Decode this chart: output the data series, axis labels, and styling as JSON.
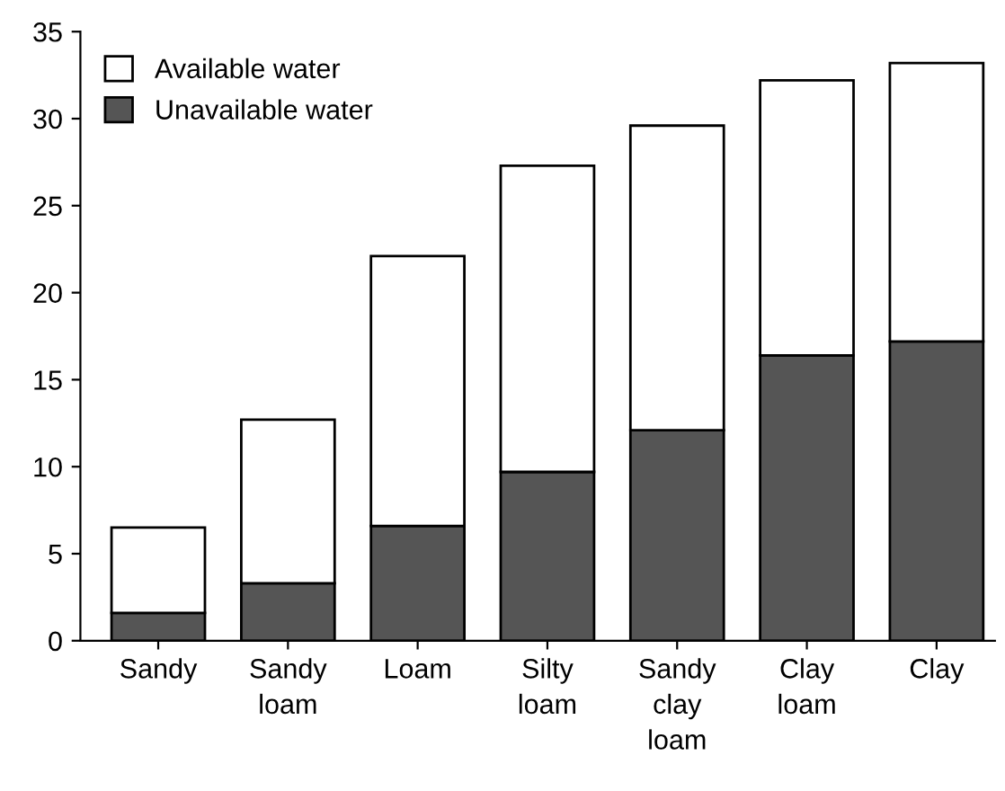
{
  "chart_data": {
    "type": "bar",
    "stacked": true,
    "categories": [
      "Sandy",
      "Sandy\nloam",
      "Loam",
      "Silty\nloam",
      "Sandy\nclay\nloam",
      "Clay\nloam",
      "Clay"
    ],
    "series": [
      {
        "name": "Unavailable water",
        "color": "#555555",
        "values": [
          1.6,
          3.3,
          6.6,
          9.7,
          12.1,
          16.4,
          17.2
        ]
      },
      {
        "name": "Available water",
        "color": "#ffffff",
        "values": [
          4.9,
          9.4,
          15.5,
          17.6,
          17.5,
          15.8,
          16.0
        ]
      }
    ],
    "ylim": [
      0,
      35
    ],
    "yticks": [
      0,
      5,
      10,
      15,
      20,
      25,
      30,
      35
    ],
    "grid": false,
    "legend": "top left"
  }
}
